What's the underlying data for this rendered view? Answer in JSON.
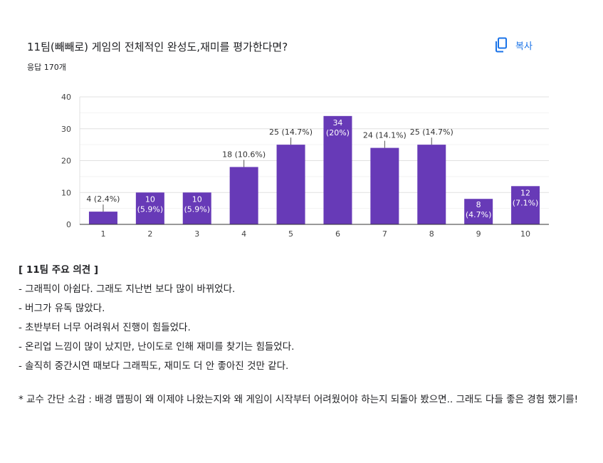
{
  "question": {
    "title": "11팀(빼빼로) 게임의 전체적인 완성도,재미를 평가한다면?",
    "responses": "응답 170개"
  },
  "copy_button": {
    "label": "복사",
    "icon": "copy-icon",
    "color": "#1a73e8"
  },
  "chart_data": {
    "type": "bar",
    "categories": [
      "1",
      "2",
      "3",
      "4",
      "5",
      "6",
      "7",
      "8",
      "9",
      "10"
    ],
    "values": [
      4,
      10,
      10,
      18,
      25,
      34,
      24,
      25,
      8,
      12
    ],
    "labels": [
      "4 (2.4%)",
      "10 (5.9%)",
      "10 (5.9%)",
      "18 (10.6%)",
      "25 (14.7%)",
      "34 (20%)",
      "24 (14.1%)",
      "25 (14.7%)",
      "8 (4.7%)",
      "12 (7.1%)"
    ],
    "ylim": [
      0,
      40
    ],
    "yticks": [
      0,
      10,
      20,
      30,
      40
    ],
    "bar_color": "#673ab7",
    "grid": true
  },
  "notes": {
    "heading": "[ 11팀 주요 의견 ]",
    "items": [
      "- 그래픽이 아쉽다. 그래도 지난번 보다 많이 바뀌었다.",
      "- 버그가 유독 많았다.",
      "- 초반부터 너무 어려워서 진행이 힘들었다.",
      "- 온리업 느낌이 많이 났지만, 난이도로 인해 재미를 찾기는 힘들었다.",
      "- 솔직히 중간시연 때보다 그래픽도, 재미도 더 안 좋아진 것만 같다."
    ],
    "comment": " * 교수 간단 소감 : 배경 맵핑이 왜 이제야 나왔는지와 왜 게임이 시작부터 어려웠어야 하는지 되돌아 봤으면.. 그래도 다들 좋은 경험 했기를!"
  }
}
